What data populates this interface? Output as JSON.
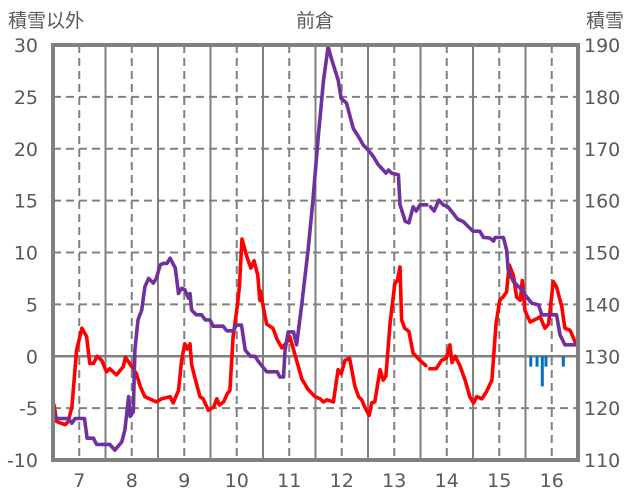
{
  "titles": {
    "left_axis": "積雪以外",
    "center": "前倉",
    "right_axis": "積雪"
  },
  "chart_data": {
    "type": "line",
    "title": "前倉",
    "ylabel": "積雪以外",
    "y2label": "積雪",
    "xlim": [
      6.5,
      16.5
    ],
    "ylim": [
      -10,
      30
    ],
    "y2lim": [
      110,
      190
    ],
    "x_ticks": [
      7,
      8,
      9,
      10,
      11,
      12,
      13,
      14,
      15,
      16
    ],
    "y_ticks": [
      30,
      25,
      20,
      15,
      10,
      5,
      0,
      -5,
      -10
    ],
    "y2_ticks": [
      190,
      180,
      170,
      160,
      150,
      140,
      130,
      120,
      110
    ],
    "grid": true,
    "legend": "none",
    "series": [
      {
        "color": "#ff0000",
        "axis": "left",
        "kind": "line",
        "points": [
          [
            6.52,
            -4.7
          ],
          [
            6.57,
            -6.3
          ],
          [
            6.73,
            -6.6
          ],
          [
            6.79,
            -6.3
          ],
          [
            6.86,
            -4.9
          ],
          [
            6.95,
            0.6
          ],
          [
            7.05,
            2.7
          ],
          [
            7.14,
            1.9
          ],
          [
            7.2,
            -0.7
          ],
          [
            7.27,
            -0.7
          ],
          [
            7.34,
            0.0
          ],
          [
            7.43,
            -0.4
          ],
          [
            7.52,
            -1.5
          ],
          [
            7.58,
            -1.2
          ],
          [
            7.71,
            -1.8
          ],
          [
            7.84,
            -1.0
          ],
          [
            7.88,
            -0.1
          ],
          [
            8.0,
            -1.0
          ],
          [
            8.09,
            -1.7
          ],
          [
            8.16,
            -2.9
          ],
          [
            8.25,
            -3.9
          ],
          [
            8.38,
            -4.2
          ],
          [
            8.47,
            -4.4
          ],
          [
            8.57,
            -4.1
          ],
          [
            8.73,
            -3.9
          ],
          [
            8.79,
            -4.5
          ],
          [
            8.89,
            -3.3
          ],
          [
            8.95,
            -0.4
          ],
          [
            9.01,
            1.2
          ],
          [
            9.06,
            0.7
          ],
          [
            9.11,
            1.2
          ],
          [
            9.14,
            -0.8
          ],
          [
            9.2,
            -2.0
          ],
          [
            9.3,
            -3.9
          ],
          [
            9.36,
            -4.1
          ],
          [
            9.46,
            -5.2
          ],
          [
            9.56,
            -4.9
          ],
          [
            9.62,
            -4.1
          ],
          [
            9.67,
            -4.7
          ],
          [
            9.75,
            -4.4
          ],
          [
            9.82,
            -3.6
          ],
          [
            9.87,
            -3.3
          ],
          [
            9.93,
            1.9
          ],
          [
            10.01,
            4.8
          ],
          [
            10.05,
            6.7
          ],
          [
            10.1,
            11.3
          ],
          [
            10.2,
            9.5
          ],
          [
            10.27,
            8.5
          ],
          [
            10.33,
            9.2
          ],
          [
            10.4,
            7.8
          ],
          [
            10.44,
            5.4
          ],
          [
            10.45,
            6.3
          ],
          [
            10.54,
            3.8
          ],
          [
            10.57,
            3.1
          ],
          [
            10.69,
            2.7
          ],
          [
            10.77,
            1.6
          ],
          [
            10.86,
            0.8
          ],
          [
            10.98,
            1.5
          ],
          [
            11.01,
            1.9
          ],
          [
            11.14,
            -0.4
          ],
          [
            11.24,
            -2.2
          ],
          [
            11.36,
            -3.2
          ],
          [
            11.49,
            -3.9
          ],
          [
            11.59,
            -4.1
          ],
          [
            11.65,
            -4.4
          ],
          [
            11.72,
            -4.2
          ],
          [
            11.84,
            -4.4
          ],
          [
            11.93,
            -1.3
          ],
          [
            11.99,
            -1.7
          ],
          [
            12.06,
            -0.4
          ],
          [
            12.15,
            -0.2
          ],
          [
            12.25,
            -2.9
          ],
          [
            12.32,
            -3.9
          ],
          [
            12.38,
            -4.2
          ],
          [
            12.44,
            -4.9
          ],
          [
            12.52,
            -5.7
          ],
          [
            12.57,
            -4.5
          ],
          [
            12.63,
            -4.4
          ],
          [
            12.73,
            -1.3
          ],
          [
            12.79,
            -2.3
          ],
          [
            12.84,
            -1.9
          ],
          [
            12.92,
            3.2
          ],
          [
            13.01,
            7.0
          ],
          [
            13.06,
            7.3
          ],
          [
            13.11,
            8.6
          ],
          [
            13.14,
            3.5
          ],
          [
            13.2,
            2.7
          ],
          [
            13.28,
            2.4
          ],
          [
            13.36,
            0.3
          ],
          [
            13.49,
            -0.4
          ],
          [
            13.6,
            -0.9
          ],
          null,
          [
            13.68,
            -1.2
          ],
          [
            13.8,
            -1.2
          ],
          [
            13.9,
            -0.4
          ],
          [
            13.99,
            -0.2
          ],
          [
            14.06,
            1.1
          ],
          [
            14.1,
            -0.6
          ],
          [
            14.16,
            0.0
          ],
          [
            14.25,
            -0.9
          ],
          [
            14.35,
            -2.3
          ],
          [
            14.44,
            -3.9
          ],
          [
            14.51,
            -4.5
          ],
          [
            14.57,
            -3.9
          ],
          [
            14.67,
            -4.1
          ],
          [
            14.76,
            -3.4
          ],
          [
            14.86,
            -2.3
          ],
          [
            14.94,
            3.2
          ],
          [
            15.01,
            5.4
          ],
          [
            15.07,
            5.7
          ],
          [
            15.14,
            6.2
          ],
          [
            15.19,
            8.8
          ],
          [
            15.27,
            7.8
          ],
          [
            15.33,
            5.7
          ],
          [
            15.4,
            5.4
          ],
          [
            15.44,
            7.3
          ],
          [
            15.49,
            4.4
          ],
          [
            15.59,
            3.3
          ],
          [
            15.71,
            3.6
          ],
          [
            15.78,
            3.8
          ],
          [
            15.87,
            2.7
          ],
          [
            15.94,
            3.1
          ],
          [
            16.03,
            7.2
          ],
          [
            16.09,
            6.7
          ],
          [
            16.19,
            4.8
          ],
          [
            16.25,
            2.7
          ],
          [
            16.35,
            2.5
          ],
          [
            16.46,
            1.2
          ]
        ]
      },
      {
        "color": "#7030a0",
        "axis": "right",
        "kind": "line",
        "points": [
          [
            6.52,
            119.0
          ],
          [
            6.57,
            118.0
          ],
          [
            6.79,
            118.0
          ],
          [
            6.86,
            117.1
          ],
          [
            6.92,
            118.0
          ],
          [
            7.1,
            118.0
          ],
          [
            7.15,
            114.2
          ],
          [
            7.27,
            114.2
          ],
          [
            7.33,
            113.0
          ],
          [
            7.58,
            113.0
          ],
          [
            7.68,
            111.9
          ],
          [
            7.81,
            113.5
          ],
          [
            7.87,
            115.8
          ],
          [
            7.94,
            122.2
          ],
          [
            7.97,
            118.4
          ],
          [
            8.03,
            119.3
          ],
          [
            8.06,
            131.2
          ],
          [
            8.12,
            137.0
          ],
          [
            8.19,
            138.9
          ],
          [
            8.25,
            143.4
          ],
          [
            8.32,
            145.0
          ],
          [
            8.41,
            144.1
          ],
          [
            8.47,
            145.0
          ],
          [
            8.54,
            147.6
          ],
          [
            8.6,
            147.9
          ],
          [
            8.67,
            147.9
          ],
          [
            8.73,
            148.9
          ],
          [
            8.83,
            147.0
          ],
          [
            8.89,
            142.1
          ],
          [
            8.95,
            143.1
          ],
          [
            9.01,
            142.8
          ],
          [
            9.08,
            141.2
          ],
          [
            9.11,
            142.1
          ],
          [
            9.14,
            138.9
          ],
          [
            9.23,
            138.0
          ],
          [
            9.33,
            138.0
          ],
          [
            9.4,
            137.0
          ],
          [
            9.49,
            137.0
          ],
          [
            9.55,
            135.8
          ],
          [
            9.74,
            135.8
          ],
          [
            9.81,
            134.9
          ],
          [
            9.94,
            134.9
          ],
          [
            9.99,
            136.0
          ],
          [
            10.09,
            136.0
          ],
          [
            10.16,
            131.2
          ],
          [
            10.26,
            130.0
          ],
          [
            10.35,
            130.0
          ],
          [
            10.41,
            129.0
          ],
          [
            10.57,
            127.0
          ],
          [
            10.77,
            127.0
          ],
          [
            10.82,
            126.0
          ],
          [
            10.89,
            126.0
          ],
          [
            10.92,
            131.2
          ],
          [
            10.98,
            134.7
          ],
          [
            11.08,
            134.7
          ],
          [
            11.14,
            132.2
          ],
          [
            11.24,
            140.2
          ],
          [
            11.36,
            150.5
          ],
          [
            11.45,
            160.0
          ],
          [
            11.55,
            172.0
          ],
          [
            11.65,
            183.0
          ],
          [
            11.74,
            189.7
          ],
          [
            11.81,
            187.1
          ],
          [
            11.93,
            183.3
          ],
          [
            11.99,
            179.7
          ],
          [
            12.09,
            178.8
          ],
          [
            12.22,
            173.9
          ],
          [
            12.32,
            172.3
          ],
          [
            12.41,
            170.7
          ],
          [
            12.5,
            169.8
          ],
          [
            12.6,
            168.5
          ],
          [
            12.69,
            167.0
          ],
          [
            12.79,
            165.9
          ],
          [
            12.84,
            165.3
          ],
          [
            12.89,
            165.9
          ],
          [
            12.95,
            165.3
          ],
          [
            13.08,
            165.0
          ],
          [
            13.11,
            159.2
          ],
          [
            13.21,
            156.0
          ],
          [
            13.28,
            155.7
          ],
          [
            13.36,
            158.8
          ],
          [
            13.42,
            158.0
          ],
          [
            13.49,
            159.2
          ],
          [
            13.62,
            159.2
          ],
          null,
          [
            13.69,
            158.8
          ],
          [
            13.76,
            158.0
          ],
          [
            13.85,
            160.1
          ],
          [
            13.93,
            159.2
          ],
          [
            14.02,
            158.8
          ],
          [
            14.12,
            157.6
          ],
          [
            14.21,
            156.4
          ],
          [
            14.31,
            156.0
          ],
          [
            14.41,
            155.0
          ],
          [
            14.5,
            154.1
          ],
          [
            14.63,
            154.1
          ],
          [
            14.7,
            152.9
          ],
          [
            14.82,
            152.8
          ],
          [
            14.89,
            152.2
          ],
          [
            14.92,
            152.9
          ],
          [
            15.08,
            152.9
          ],
          [
            15.14,
            150.5
          ],
          [
            15.17,
            146.6
          ],
          [
            15.27,
            144.4
          ],
          [
            15.4,
            143.1
          ],
          [
            15.52,
            141.5
          ],
          [
            15.62,
            140.2
          ],
          [
            15.75,
            139.9
          ],
          [
            15.81,
            138.0
          ],
          [
            16.09,
            138.0
          ],
          [
            16.16,
            134.1
          ],
          [
            16.25,
            132.2
          ],
          [
            16.46,
            132.2
          ]
        ]
      },
      {
        "color": "#0070c0",
        "axis": "left",
        "kind": "bar",
        "points": [
          [
            15.6,
            -1.0
          ],
          [
            15.72,
            -1.0
          ],
          [
            15.82,
            -2.9
          ],
          [
            15.89,
            -1.0
          ],
          [
            16.22,
            -1.0
          ]
        ]
      }
    ]
  }
}
